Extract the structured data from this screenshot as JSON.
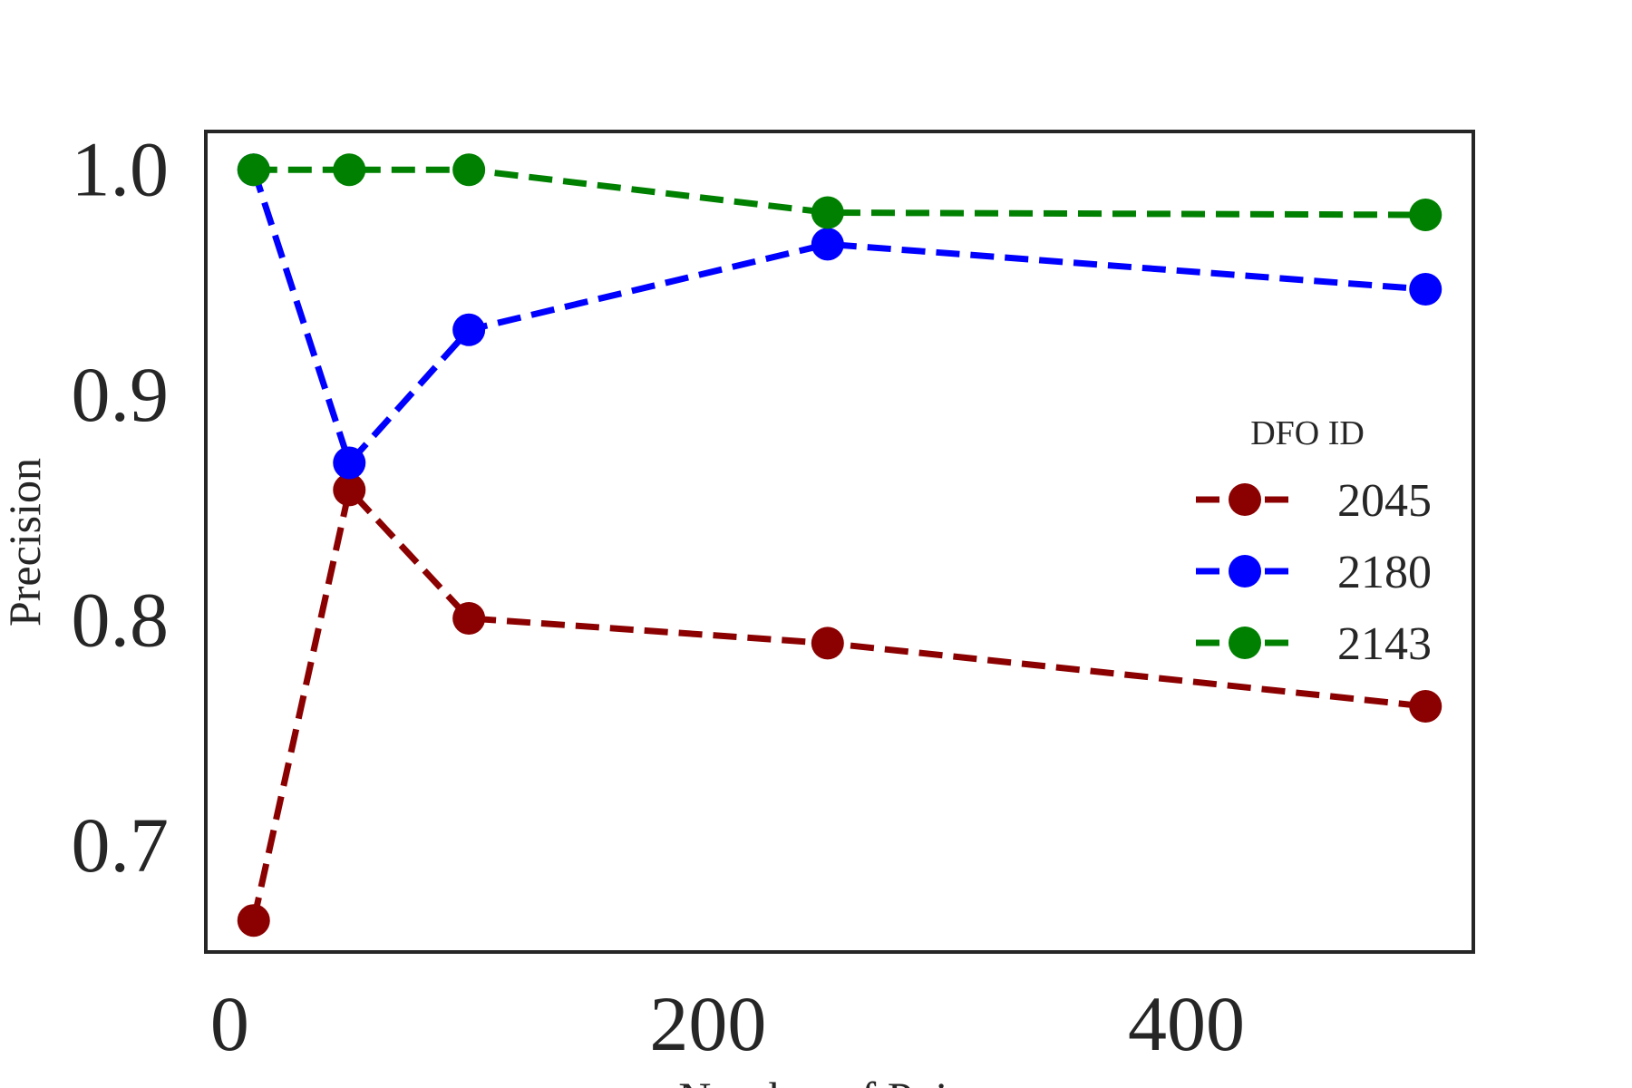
{
  "chart_data": {
    "type": "line",
    "title": "",
    "xlabel": "Number of Points",
    "ylabel": "Precision",
    "xlim": [
      -10,
      520
    ],
    "ylim": [
      0.653,
      1.017
    ],
    "x_ticks": [
      0,
      200,
      400
    ],
    "y_ticks": [
      0.7,
      0.8,
      0.9,
      1.0
    ],
    "x_tick_labels": [
      "0",
      "200",
      "400"
    ],
    "y_tick_labels": [
      "0.7",
      "0.8",
      "0.9",
      "1.0"
    ],
    "grid": false,
    "line_style": "dashed",
    "marker": "circle",
    "x": [
      10,
      50,
      100,
      250,
      500
    ],
    "legend": {
      "title": "DFO ID",
      "placement": "center-right"
    },
    "series": [
      {
        "name": "2045",
        "color": "#8b0000",
        "values": [
          0.667,
          0.858,
          0.801,
          0.79,
          0.762
        ]
      },
      {
        "name": "2180",
        "color": "#0000ff",
        "values": [
          1.0,
          0.87,
          0.929,
          0.967,
          0.947
        ]
      },
      {
        "name": "2143",
        "color": "#008000",
        "values": [
          1.0,
          1.0,
          1.0,
          0.981,
          0.98
        ]
      }
    ]
  }
}
